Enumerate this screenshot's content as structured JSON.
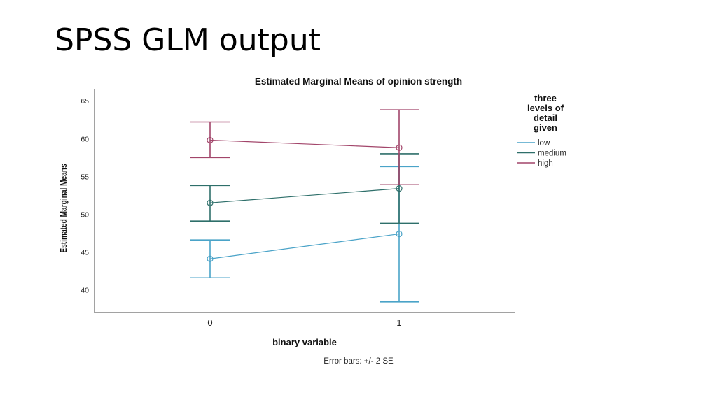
{
  "slide": {
    "title": "SPSS GLM output"
  },
  "chart_data": {
    "type": "line",
    "title": "Estimated Marginal Means of opinion strength",
    "xlabel": "binary variable",
    "ylabel": "Estimated Marginal Means",
    "categories": [
      "0",
      "1"
    ],
    "y_ticks": [
      40,
      45,
      50,
      55,
      60,
      65
    ],
    "ylim": [
      37,
      66.5
    ],
    "grid": false,
    "legend": {
      "title_lines": [
        "three",
        "levels of",
        "detail",
        "given"
      ],
      "placement": "right"
    },
    "footnote": "Error bars: +/- 2 SE",
    "series": [
      {
        "name": "low",
        "color": "#4aa3c8",
        "values": [
          44.1,
          47.4
        ],
        "error_low": [
          41.6,
          38.4
        ],
        "error_high": [
          46.6,
          56.3
        ]
      },
      {
        "name": "medium",
        "color": "#2e6f6a",
        "values": [
          51.5,
          53.4
        ],
        "error_low": [
          49.1,
          48.8
        ],
        "error_high": [
          53.8,
          58.0
        ]
      },
      {
        "name": "high",
        "color": "#a2456a",
        "values": [
          59.8,
          58.8
        ],
        "error_low": [
          57.5,
          53.9
        ],
        "error_high": [
          62.2,
          63.8
        ]
      }
    ]
  }
}
